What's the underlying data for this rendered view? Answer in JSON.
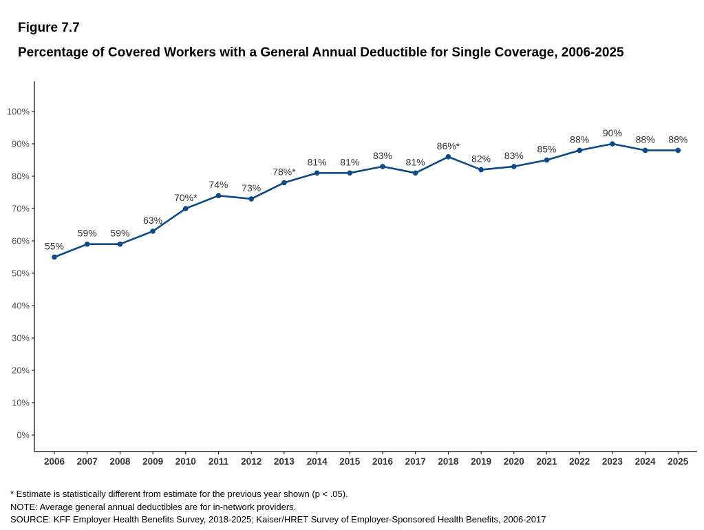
{
  "figure_label": "Figure 7.7",
  "title": "Percentage of Covered Workers with a General Annual Deductible for Single Coverage, 2006-2025",
  "chart_data": {
    "type": "line",
    "title": "Percentage of Covered Workers with a General Annual Deductible for Single Coverage, 2006-2025",
    "xlabel": "",
    "ylabel": "",
    "ylim": [
      0,
      100
    ],
    "y_ticks": [
      0,
      10,
      20,
      30,
      40,
      50,
      60,
      70,
      80,
      90,
      100
    ],
    "y_tick_labels": [
      "0%",
      "10%",
      "20%",
      "30%",
      "40%",
      "50%",
      "60%",
      "70%",
      "80%",
      "90%",
      "100%"
    ],
    "x": [
      "2006",
      "2007",
      "2008",
      "2009",
      "2010",
      "2011",
      "2012",
      "2013",
      "2014",
      "2015",
      "2016",
      "2017",
      "2018",
      "2019",
      "2020",
      "2021",
      "2022",
      "2023",
      "2024",
      "2025"
    ],
    "series": [
      {
        "values": [
          55,
          59,
          59,
          63,
          70,
          74,
          73,
          78,
          81,
          81,
          83,
          81,
          86,
          82,
          83,
          85,
          88,
          90,
          88,
          88
        ],
        "labels": [
          "55%",
          "59%",
          "59%",
          "63%",
          "70%*",
          "74%",
          "73%",
          "78%*",
          "81%",
          "81%",
          "83%",
          "81%",
          "86%*",
          "82%",
          "83%",
          "85%",
          "88%",
          "90%",
          "88%",
          "88%"
        ],
        "color": "#0b4a84"
      }
    ],
    "grid": false,
    "legend": "none"
  },
  "footnotes": {
    "asterisk": "* Estimate is statistically different from estimate for the previous year shown (p < .05).",
    "note": "NOTE: Average general annual deductibles are for in-network providers.",
    "source": "SOURCE: KFF Employer Health Benefits Survey, 2018-2025; Kaiser/HRET Survey of Employer-Sponsored Health Benefits, 2006-2017"
  }
}
